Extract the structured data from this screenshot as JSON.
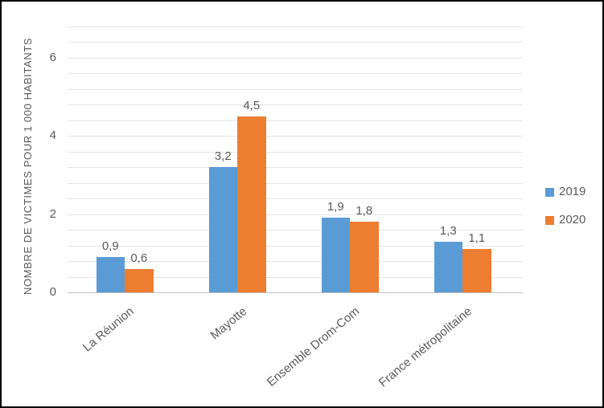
{
  "y_axis": {
    "title": "NOMBRE DE VICTIMES POUR 1 000 HABITANTS",
    "tick_values": [
      0,
      2,
      4,
      6
    ],
    "tick_labels": [
      "0",
      "2",
      "4",
      "6"
    ]
  },
  "colors": {
    "series_2019": "#5B9BD5",
    "series_2020": "#ED7D31",
    "text": "#595959",
    "gridline": "#e4e4e4",
    "axis_line": "#bfbfbf",
    "frame_border": "#000000",
    "background": "#ffffff"
  },
  "chart_data": {
    "type": "bar",
    "title": "",
    "xlabel": "",
    "ylabel": "NOMBRE DE VICTIMES POUR 1 000 HABITANTS",
    "categories": [
      "La Réunion",
      "Mayotte",
      "Ensemble Drom-Com",
      "France métropolitaine"
    ],
    "series": [
      {
        "name": "2019",
        "color": "#5B9BD5",
        "values": [
          0.9,
          3.2,
          1.9,
          1.3
        ],
        "value_labels": [
          "0,9",
          "3,2",
          "1,9",
          "1,3"
        ]
      },
      {
        "name": "2020",
        "color": "#ED7D31",
        "values": [
          0.6,
          4.5,
          1.8,
          1.1
        ],
        "value_labels": [
          "0,6",
          "4,5",
          "1,8",
          "1,1"
        ]
      }
    ],
    "ylim": [
      0,
      7
    ],
    "y_major_unit": 2,
    "y_minor_unit": 0.4,
    "grid": "horizontal-minor",
    "legend_position": "right",
    "decimal_separator": ","
  }
}
